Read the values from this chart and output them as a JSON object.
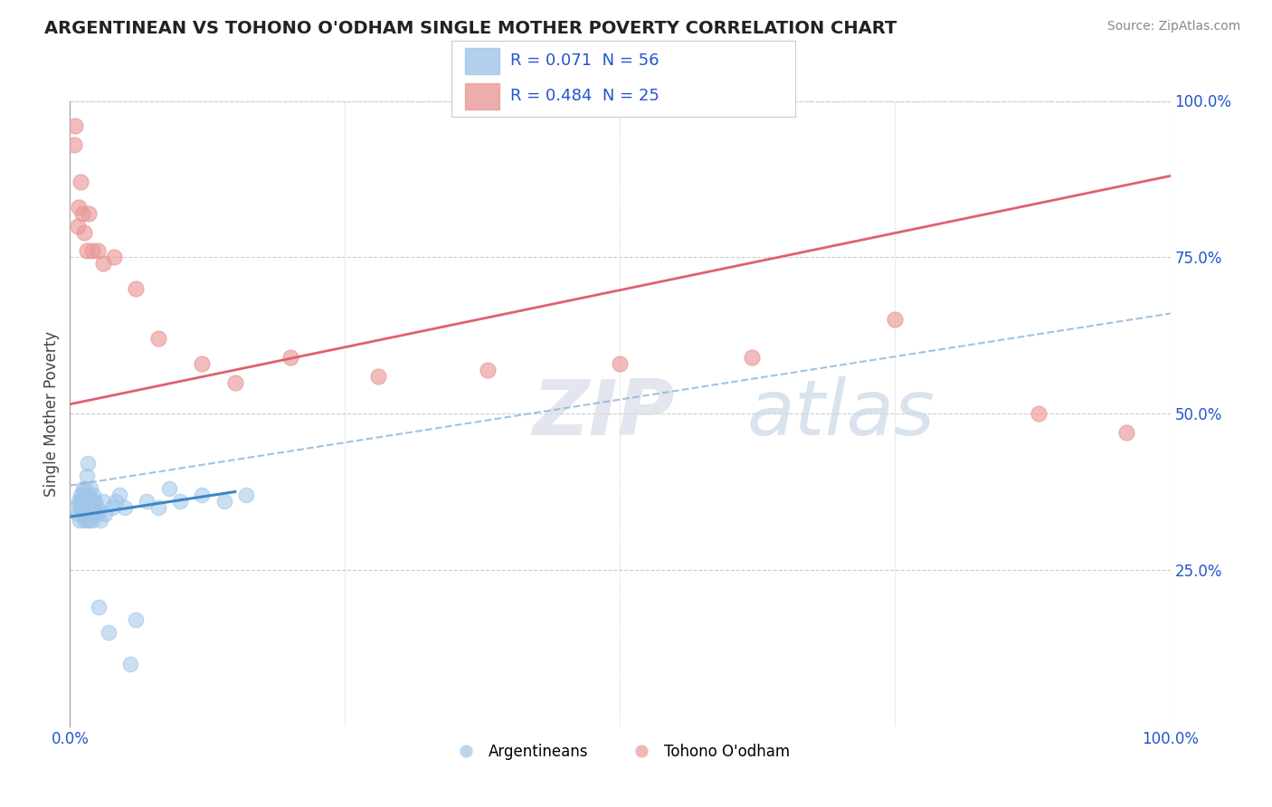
{
  "title": "ARGENTINEAN VS TOHONO O'ODHAM SINGLE MOTHER POVERTY CORRELATION CHART",
  "source": "Source: ZipAtlas.com",
  "ylabel": "Single Mother Poverty",
  "watermark_zip": "ZIP",
  "watermark_atlas": "atlas",
  "xlim": [
    0,
    1.0
  ],
  "ylim": [
    0,
    1.0
  ],
  "legend_r1": "0.071",
  "legend_n1": "56",
  "legend_r2": "0.484",
  "legend_n2": "25",
  "blue_color": "#9fc5e8",
  "pink_color": "#ea9999",
  "blue_line_color": "#3d85c8",
  "pink_line_color": "#e06070",
  "grey_dash_color": "#8ab4d8",
  "argentinean_x": [
    0.005,
    0.007,
    0.008,
    0.009,
    0.01,
    0.01,
    0.01,
    0.011,
    0.011,
    0.012,
    0.012,
    0.012,
    0.013,
    0.013,
    0.013,
    0.014,
    0.014,
    0.015,
    0.015,
    0.015,
    0.016,
    0.016,
    0.016,
    0.017,
    0.017,
    0.018,
    0.018,
    0.019,
    0.019,
    0.02,
    0.02,
    0.021,
    0.021,
    0.022,
    0.023,
    0.023,
    0.024,
    0.025,
    0.026,
    0.028,
    0.03,
    0.032,
    0.035,
    0.038,
    0.042,
    0.045,
    0.05,
    0.055,
    0.06,
    0.07,
    0.08,
    0.09,
    0.1,
    0.12,
    0.14,
    0.16
  ],
  "argentinean_y": [
    0.35,
    0.34,
    0.36,
    0.33,
    0.35,
    0.36,
    0.37,
    0.34,
    0.37,
    0.35,
    0.36,
    0.38,
    0.33,
    0.35,
    0.37,
    0.34,
    0.38,
    0.33,
    0.35,
    0.4,
    0.34,
    0.36,
    0.42,
    0.35,
    0.37,
    0.33,
    0.36,
    0.34,
    0.38,
    0.33,
    0.36,
    0.34,
    0.37,
    0.35,
    0.34,
    0.36,
    0.35,
    0.34,
    0.19,
    0.33,
    0.36,
    0.34,
    0.15,
    0.35,
    0.36,
    0.37,
    0.35,
    0.1,
    0.17,
    0.36,
    0.35,
    0.38,
    0.36,
    0.37,
    0.36,
    0.37
  ],
  "tohono_x": [
    0.004,
    0.005,
    0.007,
    0.008,
    0.01,
    0.011,
    0.013,
    0.015,
    0.017,
    0.02,
    0.025,
    0.03,
    0.04,
    0.06,
    0.08,
    0.12,
    0.15,
    0.2,
    0.28,
    0.38,
    0.5,
    0.62,
    0.75,
    0.88,
    0.96
  ],
  "tohono_y": [
    0.93,
    0.96,
    0.8,
    0.83,
    0.87,
    0.82,
    0.79,
    0.76,
    0.82,
    0.76,
    0.76,
    0.74,
    0.75,
    0.7,
    0.62,
    0.58,
    0.55,
    0.59,
    0.56,
    0.57,
    0.58,
    0.59,
    0.65,
    0.5,
    0.47
  ],
  "blue_trend": [
    0.0,
    0.15,
    0.335,
    0.375
  ],
  "pink_trend": [
    0.0,
    1.0,
    0.515,
    0.88
  ],
  "grey_dash_trend": [
    0.0,
    1.0,
    0.385,
    0.66
  ]
}
